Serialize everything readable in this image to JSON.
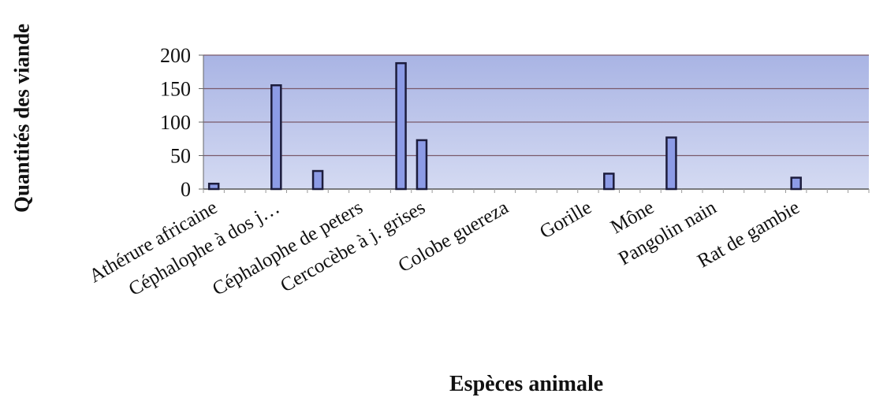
{
  "chart_data": {
    "type": "bar",
    "title": "",
    "ylabel": "Quantités des viande",
    "xlabel": "Espèces animale",
    "ylim": [
      0,
      200
    ],
    "yticks": [
      0,
      50,
      100,
      150,
      200
    ],
    "grid": true,
    "legend": "none",
    "colors": {
      "plot_bg": "#b4bee6",
      "bar_fill": "#8c9be6",
      "bar_edge": "#1c1c3c",
      "grid": "#7a5a6a"
    },
    "slots": 32,
    "x_tick_labels": [
      {
        "slot": 0,
        "label": "Athérure africaine"
      },
      {
        "slot": 3,
        "label": "Céphalophe à dos j…"
      },
      {
        "slot": 7,
        "label": "Céphalophe de peters"
      },
      {
        "slot": 10,
        "label": "Cercocèbe à j. grises"
      },
      {
        "slot": 14,
        "label": "Colobe guereza"
      },
      {
        "slot": 18,
        "label": "Gorille"
      },
      {
        "slot": 21,
        "label": "Mône"
      },
      {
        "slot": 24,
        "label": "Pangolin nain"
      },
      {
        "slot": 28,
        "label": "Rat de gambie"
      }
    ],
    "bars": [
      {
        "slot": 0,
        "value": 8
      },
      {
        "slot": 3,
        "value": 155
      },
      {
        "slot": 5,
        "value": 27
      },
      {
        "slot": 9,
        "value": 188
      },
      {
        "slot": 10,
        "value": 73
      },
      {
        "slot": 19,
        "value": 23
      },
      {
        "slot": 22,
        "value": 77
      },
      {
        "slot": 28,
        "value": 17
      }
    ]
  }
}
